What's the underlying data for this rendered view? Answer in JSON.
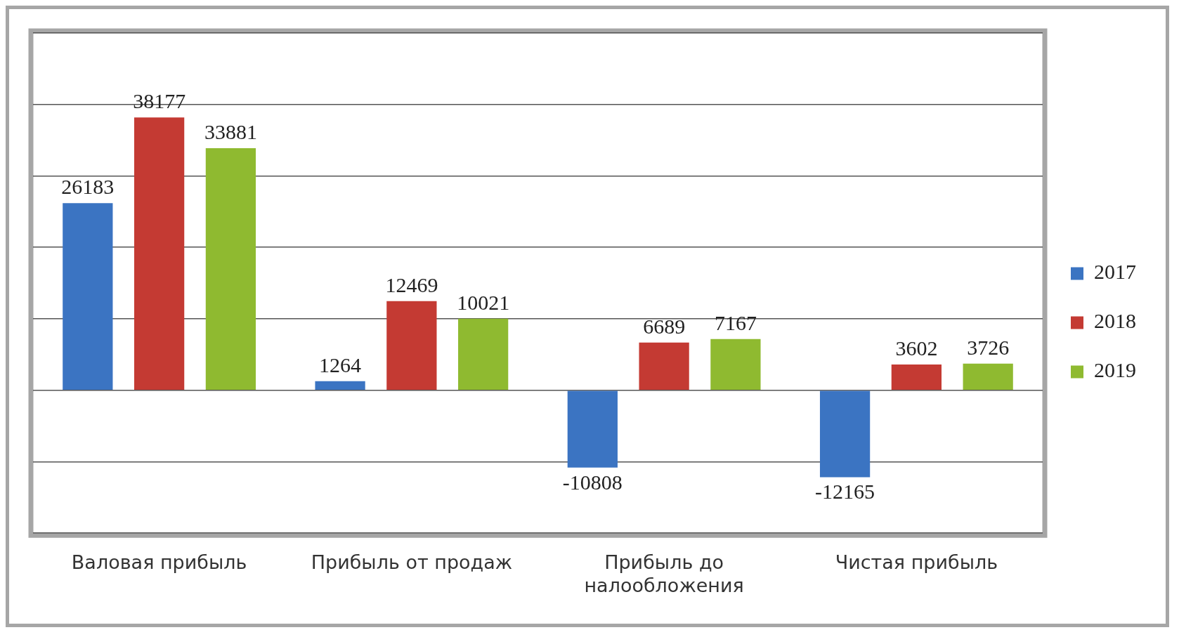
{
  "chart_data": {
    "type": "bar",
    "categories": [
      "Валовая прибыль",
      "Прибыль от продаж",
      "Прибыль до налообложения",
      "Чистая прибыль"
    ],
    "series": [
      {
        "name": "2017",
        "color": "#3b74c2",
        "values": [
          26183,
          1264,
          -10808,
          -12165
        ]
      },
      {
        "name": "2018",
        "color": "#c43a33",
        "values": [
          38177,
          12469,
          6689,
          3602
        ]
      },
      {
        "name": "2019",
        "color": "#8fba30",
        "values": [
          33881,
          10021,
          7167,
          3726
        ]
      }
    ],
    "ylim": [
      -20000,
      50000
    ],
    "yticks": [
      {
        "value": -20000,
        "label": null
      },
      {
        "value": -10000,
        "label": null
      },
      {
        "value": 0,
        "label": null
      },
      {
        "value": 10000,
        "label": null
      },
      {
        "value": 20000,
        "label": null
      },
      {
        "value": 30000,
        "label": null
      },
      {
        "value": 40000,
        "label": null
      },
      {
        "value": 50000,
        "label": null
      }
    ],
    "tick_labels": "x",
    "grid": "y",
    "legend": "right",
    "data_labels": true
  }
}
